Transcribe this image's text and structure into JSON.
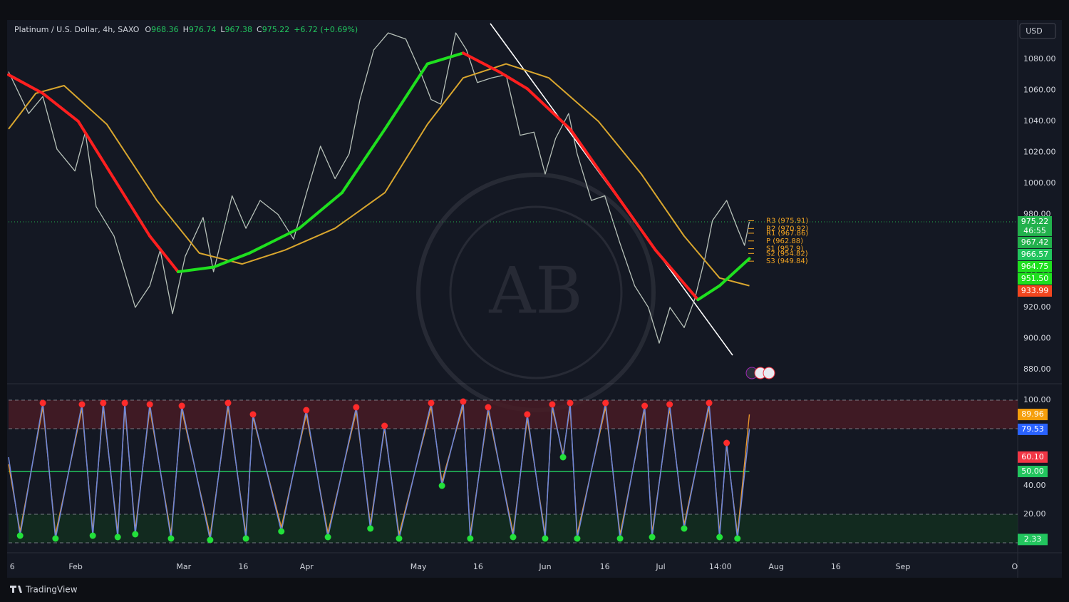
{
  "header": {
    "symbol": "Platinum / U.S. Dollar, 4h, SAXO",
    "ohlc": [
      {
        "key": "O",
        "value": 968.36
      },
      {
        "key": "H",
        "value": 976.74
      },
      {
        "key": "L",
        "value": 967.38
      },
      {
        "key": "C",
        "value": 975.22
      }
    ],
    "change": "+6.72 (+0.69%)"
  },
  "currency": "USD",
  "brand": "TradingView",
  "chart_data": [
    {
      "type": "line",
      "xlim": [
        0,
        270.8
      ],
      "ylim": [
        872.2,
        1104.4
      ],
      "yticks": [
        {
          "value": 880,
          "label": "880.00"
        },
        {
          "value": 900,
          "label": "900.00"
        },
        {
          "value": 920,
          "label": "920.00"
        },
        {
          "value": 940,
          "label": "940.00"
        },
        {
          "value": 960,
          "label": "960.00"
        },
        {
          "value": 980,
          "label": "980.00"
        },
        {
          "value": 1000,
          "label": "1000.00"
        },
        {
          "value": 1020,
          "label": "1020.00"
        },
        {
          "value": 1040,
          "label": "1040.00"
        },
        {
          "value": 1060,
          "label": "1060.00"
        },
        {
          "value": 1080,
          "label": "1080.00"
        }
      ],
      "series": [
        {
          "color": "#b7c1b9",
          "width": 1.3,
          "x": [
            0,
            5.4,
            9.2,
            13,
            17.8,
            20.6,
            23.5,
            28.3,
            34,
            37.9,
            40.7,
            44,
            47.4,
            52.2,
            55,
            60,
            63.7,
            67.5,
            72.3,
            76.5,
            80,
            83.7,
            87.6,
            91.4,
            94.3,
            98,
            101.9,
            106.6,
            110.5,
            113.4,
            116,
            120,
            122.9,
            125.8,
            129.6,
            133.5,
            137.3,
            141,
            144,
            146.8,
            150.3,
            152.6,
            156.4,
            160,
            164,
            168,
            171.7,
            174.6,
            177.5,
            181.3,
            184.1,
            187,
            188.9,
            192.7,
            195.6,
            197.5,
            198.8
          ],
          "values": [
            1072,
            1045,
            1056,
            1022,
            1008,
            1033,
            985,
            966,
            920,
            934,
            957,
            916,
            953,
            978,
            943,
            992,
            971,
            989,
            980,
            964,
            994,
            1024,
            1003,
            1019,
            1054,
            1086,
            1097,
            1093,
            1072,
            1054,
            1051,
            1097,
            1086,
            1065,
            1068,
            1070,
            1031,
            1033,
            1006,
            1029,
            1045,
            1019,
            989,
            992,
            962,
            934,
            920,
            897,
            920,
            907,
            925,
            953,
            976,
            989,
            971,
            960,
            975.22
          ]
        },
        {
          "color": "#d9a62e",
          "width": 2,
          "x": [
            0,
            7.3,
            14.9,
            26.4,
            39.8,
            51.2,
            62.7,
            74.2,
            87.6,
            101,
            112.4,
            122,
            133.5,
            145,
            158.3,
            169.8,
            181.3,
            190.8,
            198.8
          ],
          "values": [
            1035,
            1058,
            1063,
            1038,
            989,
            955,
            948,
            957,
            971,
            994,
            1038,
            1068,
            1077,
            1068,
            1040,
            1006,
            966,
            939,
            933.99
          ]
        },
        {
          "color": "#ff1f1f",
          "up_color": "#1fe01f",
          "width": 4,
          "x": [
            0,
            9.2,
            18.7,
            28.3,
            37.9,
            45.5,
            55,
            64.6,
            78,
            89.5,
            101,
            112.4,
            122,
            131.6,
            139.2,
            150.7,
            162.1,
            173.6,
            185,
            190.8,
            198.8
          ],
          "values": [
            1070,
            1058,
            1040,
            1003,
            966,
            943,
            946,
            955,
            971,
            994,
            1035,
            1077,
            1084,
            1072,
            1061,
            1035,
            996,
            957,
            925,
            934,
            951.5
          ]
        }
      ],
      "price_labels": [
        {
          "value": 975.22,
          "label": "975.22",
          "color": "#22b14c"
        },
        {
          "value": 967.42,
          "label": "967.42",
          "color": "#22b14c"
        },
        {
          "value": 966.57,
          "label": "966.57",
          "color": "#22c55e"
        },
        {
          "value": 964.75,
          "label": "964.75",
          "color": "#1fe01f"
        },
        {
          "value": 951.5,
          "label": "951.50",
          "color": "#1fe01f"
        },
        {
          "value": 933.99,
          "label": "933.99",
          "color": "#f2461f"
        }
      ],
      "countdown": "46:55",
      "pivot_color": "#f5a623",
      "pivots": [
        {
          "label": "R3 (975.91)",
          "value": 975.91
        },
        {
          "label": "R2 (970.92)",
          "value": 970.92
        },
        {
          "label": "R1 (967.86)",
          "value": 967.86
        },
        {
          "label": "P (962.88)",
          "value": 962.88
        },
        {
          "label": "S1 (957.9)",
          "value": 957.9
        },
        {
          "label": "S2 (954.82)",
          "value": 954.82
        },
        {
          "label": "S3 (949.84)",
          "value": 949.84
        }
      ]
    },
    {
      "type": "line",
      "xlim": [
        0,
        270.8
      ],
      "ylim": [
        -2,
        110.5
      ],
      "yticks": [
        {
          "value": 20,
          "label": "20.00"
        },
        {
          "value": 40,
          "label": "40.00"
        },
        {
          "value": 100,
          "label": "100.00"
        }
      ],
      "xticks": [
        {
          "value": 1,
          "label": "6"
        },
        {
          "value": 18,
          "label": "Feb"
        },
        {
          "value": 47,
          "label": "Mar"
        },
        {
          "value": 63,
          "label": "16"
        },
        {
          "value": 80,
          "label": "Apr"
        },
        {
          "value": 110,
          "label": "May"
        },
        {
          "value": 126,
          "label": "16"
        },
        {
          "value": 144,
          "label": "Jun"
        },
        {
          "value": 160,
          "label": "16"
        },
        {
          "value": 175,
          "label": "Jul"
        },
        {
          "value": 191,
          "label": "14:00"
        },
        {
          "value": 206,
          "label": "Aug"
        },
        {
          "value": 222,
          "label": "16"
        },
        {
          "value": 240,
          "label": "Sep"
        },
        {
          "value": 270,
          "label": "O"
        }
      ],
      "bands": [
        {
          "from": 80,
          "to": 100,
          "color": "#4a1b24"
        },
        {
          "from": 0,
          "to": 20,
          "color": "#11301e"
        }
      ],
      "dashed_levels": [
        100,
        80,
        20,
        0
      ],
      "midline": {
        "value": 50,
        "color": "#22c55e"
      },
      "series": [
        {
          "color": "#e8962a",
          "width": 1.4,
          "x": [
            0,
            3.1,
            9.2,
            12.6,
            19.7,
            22.6,
            25.4,
            29.3,
            31.2,
            34,
            37.9,
            43.6,
            46.5,
            54.1,
            58.9,
            63.7,
            65.6,
            73.2,
            79.9,
            85.7,
            93.3,
            97.1,
            100.9,
            104.8,
            113.4,
            116.3,
            122,
            123.9,
            128.7,
            135.4,
            139.2,
            144,
            145.9,
            148.8,
            150.7,
            152.6,
            160.2,
            164.1,
            170.7,
            172.7,
            177.4,
            181.3,
            188,
            190.8,
            192.7,
            195.6,
            198.8
          ],
          "values": [
            55,
            8,
            95,
            6,
            94,
            8,
            95,
            7,
            95,
            9,
            94,
            6,
            93,
            5,
            95,
            6,
            88,
            11,
            90,
            7,
            92,
            13,
            80,
            6,
            95,
            43,
            96,
            6,
            92,
            7,
            87,
            6,
            94,
            62,
            95,
            6,
            95,
            6,
            93,
            7,
            94,
            13,
            95,
            7,
            68,
            6,
            89.96
          ]
        },
        {
          "color": "#6f86d6",
          "width": 1.6,
          "x": [
            0,
            3.1,
            9.2,
            12.6,
            19.7,
            22.6,
            25.4,
            29.3,
            31.2,
            34,
            37.9,
            43.6,
            46.5,
            54.1,
            58.9,
            63.7,
            65.6,
            73.2,
            79.9,
            85.7,
            93.3,
            97.1,
            100.9,
            104.8,
            113.4,
            116.3,
            122,
            123.9,
            128.7,
            135.4,
            139.2,
            144,
            145.9,
            148.8,
            150.7,
            152.6,
            160.2,
            164.1,
            170.7,
            172.7,
            177.4,
            181.3,
            188,
            190.8,
            192.7,
            195.6,
            198.8
          ],
          "values": [
            60,
            5,
            98,
            3,
            97,
            5,
            98,
            4,
            98,
            6,
            97,
            3,
            96,
            2,
            98,
            3,
            90,
            8,
            93,
            4,
            95,
            10,
            82,
            3,
            98,
            40,
            99,
            3,
            95,
            4,
            90,
            3,
            97,
            60,
            98,
            3,
            98,
            3,
            96,
            4,
            97,
            10,
            98,
            4,
            70,
            3,
            79.53
          ]
        }
      ],
      "value_badges": [
        {
          "value": 89.96,
          "label": "89.96",
          "color": "#f59e0b"
        },
        {
          "value": 79.53,
          "label": "79.53",
          "color": "#2962ff"
        },
        {
          "value": 60.1,
          "label": "60.10",
          "color": "#f23645"
        },
        {
          "value": 50,
          "label": "50.00",
          "color": "#22c55e"
        },
        {
          "value": 2.33,
          "label": "2.33",
          "color": "#22c55e"
        }
      ]
    }
  ]
}
